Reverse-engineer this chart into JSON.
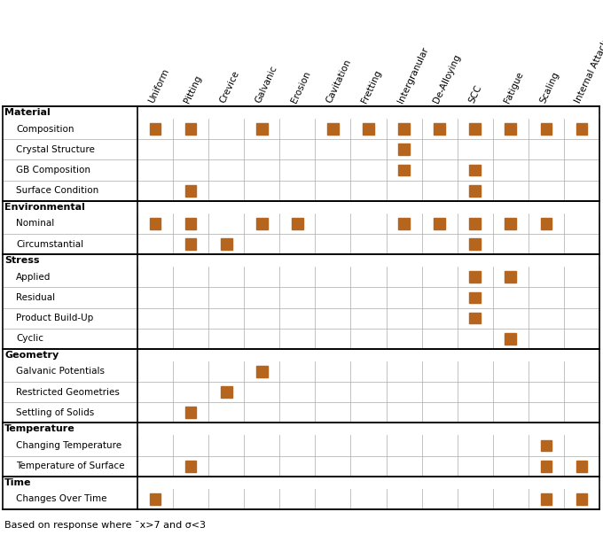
{
  "columns": [
    "Uniform",
    "Pitting",
    "Crevice",
    "Galvanic",
    "Erosion",
    "Cavitation",
    "Fretting",
    "Intergranular",
    "De-Alloying",
    "SCC",
    "Fatigue",
    "Scaling",
    "Internal Attack"
  ],
  "section_headers": [
    "Material",
    "Environmental",
    "Stress",
    "Geometry",
    "Temperature",
    "Time"
  ],
  "row_labels": [
    "Composition",
    "Crystal Structure",
    "GB Composition",
    "Surface Condition",
    "Nominal",
    "Circumstantial",
    "Applied",
    "Residual",
    "Product Build-Up",
    "Cyclic",
    "Galvanic Potentials",
    "Restricted Geometries",
    "Settling of Solids",
    "Changing Temperature",
    "Temperature of Surface",
    "Changes Over Time"
  ],
  "row_sections": [
    0,
    0,
    0,
    0,
    1,
    1,
    2,
    2,
    2,
    2,
    3,
    3,
    3,
    4,
    4,
    5
  ],
  "markers": [
    [
      0,
      1,
      3,
      5,
      6,
      7,
      8,
      9,
      10,
      11,
      12
    ],
    [
      7
    ],
    [
      7,
      9
    ],
    [
      1,
      9
    ],
    [
      0,
      1,
      3,
      4,
      7,
      8,
      9,
      10,
      11
    ],
    [
      1,
      2,
      9
    ],
    [
      9,
      10
    ],
    [
      9
    ],
    [
      9
    ],
    [
      10
    ],
    [
      3
    ],
    [
      2
    ],
    [
      1
    ],
    [
      11
    ],
    [
      1,
      11,
      12
    ],
    [
      0,
      11,
      12
    ]
  ],
  "marker_color": "#B5651D",
  "grid_color": "#AAAAAA",
  "footer_text": "Based on response where ¯x>7 and σ<3",
  "row_fontsize": 7.5,
  "col_fontsize": 7.5,
  "section_fontsize": 8.0,
  "footer_fontsize": 8.0,
  "figure_width": 6.8,
  "figure_height": 6.13
}
